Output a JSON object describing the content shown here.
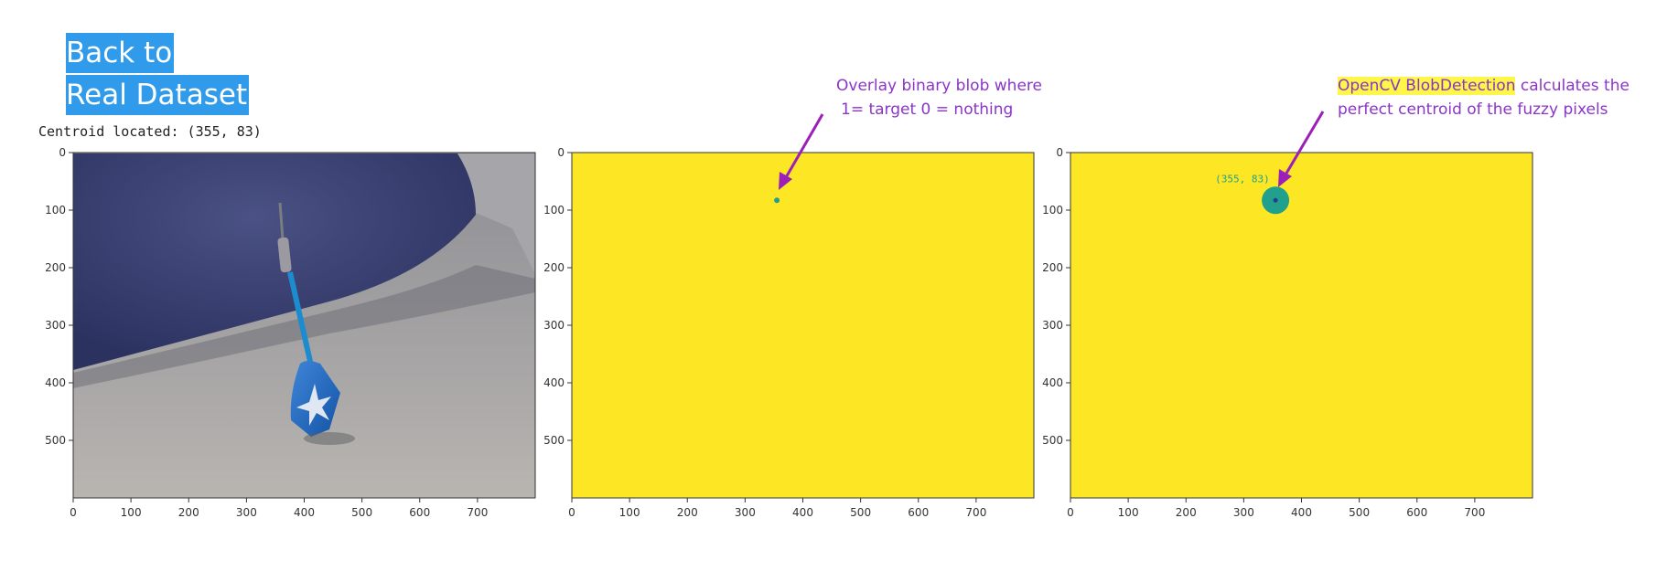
{
  "header": {
    "title_line1": "Back to",
    "title_line2": "Real Dataset",
    "centroid_text": "Centroid located: (355, 83)"
  },
  "annotations": {
    "overlay_line1": "Overlay binary blob where",
    "overlay_line2": "1= target 0 = nothing",
    "blob_highlight": "OpenCV BlobDetection",
    "blob_line1_rest": " calculates the",
    "blob_line2": "perfect centroid of the fuzzy pixels"
  },
  "plots": {
    "x_ticks": [
      "0",
      "100",
      "200",
      "300",
      "400",
      "500",
      "600",
      "700"
    ],
    "y_ticks": [
      "0",
      "100",
      "200",
      "300",
      "400",
      "500"
    ],
    "xlim": [
      0,
      800
    ],
    "ylim": [
      600,
      0
    ],
    "centroid": [
      355,
      83
    ],
    "centroid_label": "(355, 83)"
  },
  "colors": {
    "mask_bg": "#fde725",
    "blob": "#21a08d",
    "annotation": "#8a35c7",
    "title_bg": "#2f9bea"
  }
}
